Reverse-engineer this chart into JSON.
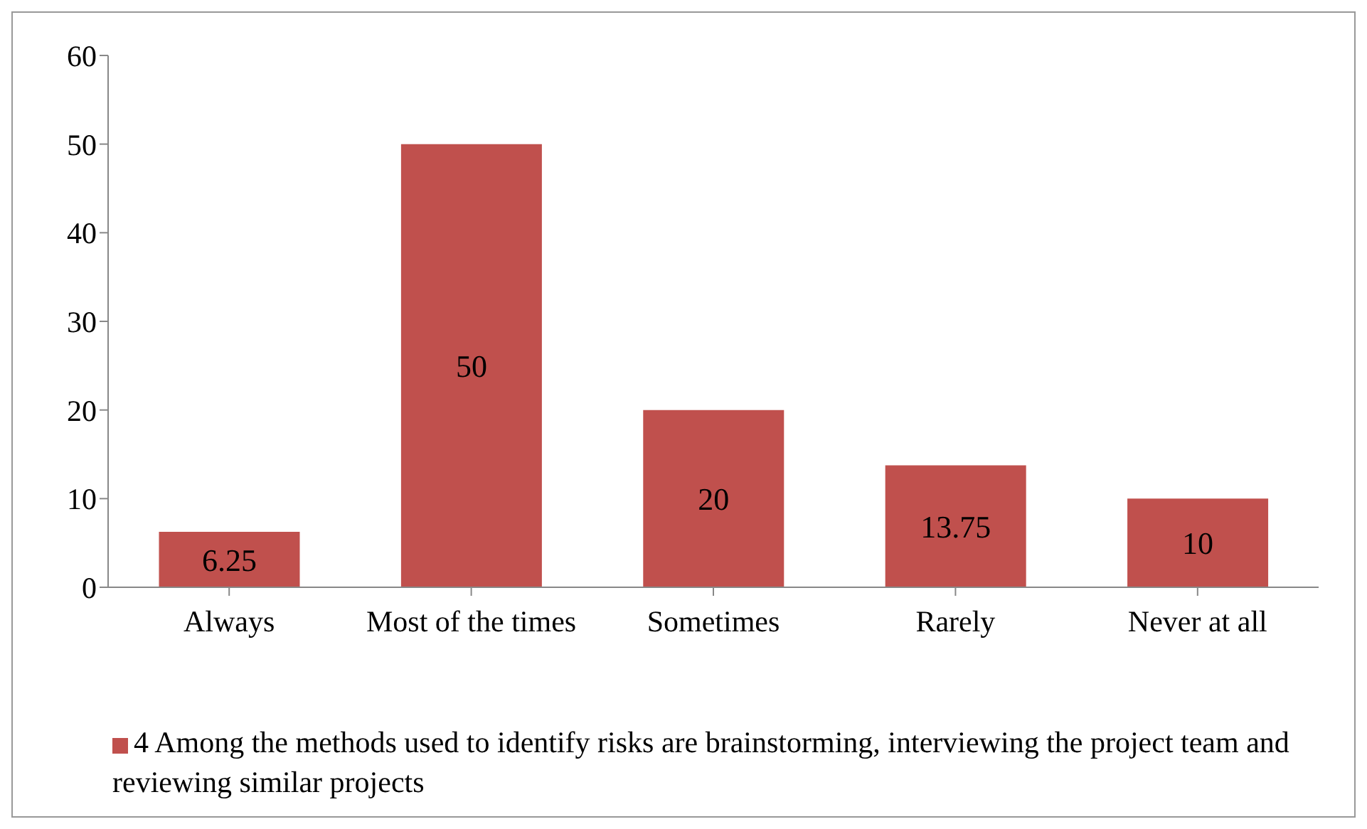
{
  "chart_data": {
    "type": "bar",
    "categories": [
      "Always",
      "Most of the times",
      "Sometimes",
      "Rarely",
      "Never at all"
    ],
    "series": [
      {
        "name": "4 Among the methods used to identify risks are brainstorming, interviewing the project team and reviewing similar projects",
        "color": "#c0504d",
        "values": [
          6.25,
          50,
          20,
          13.75,
          10
        ]
      }
    ],
    "ylim": [
      0,
      60
    ],
    "yticks": [
      0,
      10,
      20,
      30,
      40,
      50,
      60
    ],
    "data_labels": true,
    "grid": false,
    "legend": "bottom"
  }
}
